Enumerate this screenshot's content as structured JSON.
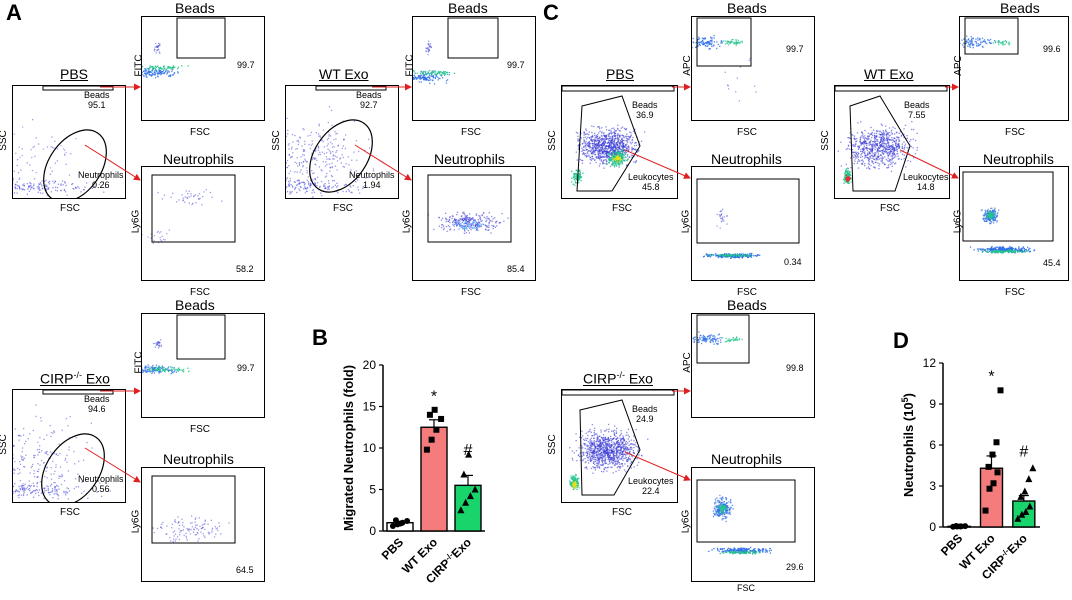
{
  "panels": {
    "A": "A",
    "B": "B",
    "C": "C",
    "D": "D"
  },
  "flow": {
    "beads": "Beads",
    "neutrophils": "Neutrophils",
    "fitc": "FITC",
    "apc": "APC",
    "fsc": "FSC",
    "ssc": "SSC",
    "ly6g": "Ly6G",
    "beads_word": "Beads",
    "neut_word": "Neutrophils",
    "leuk_word": "Leukocytes",
    "A": {
      "pbs": {
        "group": "PBS",
        "beads_gate": "95.1",
        "neut_gate": "0.26",
        "beads_pct": "99.7",
        "neut_pct": "58.2"
      },
      "wt": {
        "group": "WT Exo",
        "beads_gate": "92.7",
        "neut_gate": "1.94",
        "beads_pct": "99.7",
        "neut_pct": "85.4"
      },
      "cirp": {
        "group_main": "CIRP",
        "group_sup": "-/-",
        "group_tail": " Exo",
        "beads_gate": "94.6",
        "neut_gate": "0.56",
        "beads_pct": "99.7",
        "neut_pct": "64.5"
      }
    },
    "C": {
      "pbs": {
        "group": "PBS",
        "beads_gate": "36.9",
        "leuk_gate": "45.8",
        "beads_pct": "99.7",
        "neut_pct": "0.34"
      },
      "wt": {
        "group": "WT Exo",
        "beads_gate": "7.55",
        "leuk_gate": "14.8",
        "beads_pct": "99.6",
        "neut_pct": "45.4"
      },
      "cirp": {
        "group_main": "CIRP",
        "group_sup": "-/-",
        "group_tail": " Exo",
        "beads_gate": "24.9",
        "leuk_gate": "22.4",
        "beads_pct": "99.8",
        "neut_pct": "29.6"
      }
    }
  },
  "chart_data": [
    {
      "id": "B",
      "type": "bar",
      "ylabel": "Migrated Neutrophils (fold)",
      "ylim": [
        0,
        20
      ],
      "yticks": [
        "0",
        "5",
        "10",
        "15",
        "20"
      ],
      "categories": [
        "PBS",
        "WT Exo",
        "CIRP-/- Exo"
      ],
      "category_labels": [
        {
          "main": "PBS",
          "sup": "",
          "tail": ""
        },
        {
          "main": "WT Exo",
          "sup": "",
          "tail": ""
        },
        {
          "main": "CIRP",
          "sup": "-/-",
          "tail": "Exo"
        }
      ],
      "values": [
        1.0,
        12.5,
        5.5
      ],
      "errors": [
        0.15,
        0.9,
        1.2
      ],
      "colors": [
        "#ffffff",
        "#f47c7c",
        "#19d36b"
      ],
      "points": [
        [
          0.6,
          0.8,
          1.0,
          1.2,
          1.3,
          0.9
        ],
        [
          9.8,
          11.0,
          12.2,
          13.5,
          14.0,
          14.6
        ],
        [
          2.5,
          3.4,
          4.2,
          5.0,
          6.8,
          9.2
        ]
      ],
      "markers": [
        "circle",
        "square",
        "triangle"
      ],
      "annotations": [
        {
          "index": 1,
          "text": "*",
          "y": 16.3
        },
        {
          "index": 2,
          "text": "#",
          "y": 9.9
        }
      ]
    },
    {
      "id": "D",
      "type": "bar",
      "ylabel_main": "Neutrophils (10",
      "ylabel_sup": "5",
      "ylabel_tail": ")",
      "ylim": [
        0,
        12
      ],
      "yticks": [
        "0",
        "3",
        "6",
        "9",
        "12"
      ],
      "categories": [
        "PBS",
        "WT Exo",
        "CIRP-/- Exo"
      ],
      "category_labels": [
        {
          "main": "PBS",
          "sup": "",
          "tail": ""
        },
        {
          "main": "WT Exo",
          "sup": "",
          "tail": ""
        },
        {
          "main": "CIRP",
          "sup": "-/-",
          "tail": "Exo"
        }
      ],
      "values": [
        0.05,
        4.3,
        1.9
      ],
      "errors": [
        0.03,
        0.9,
        0.4
      ],
      "colors": [
        "#ffffff",
        "#f47c7c",
        "#19d36b"
      ],
      "points": [
        [
          0.02,
          0.04,
          0.05,
          0.06,
          0.07,
          0.05
        ],
        [
          1.2,
          2.8,
          3.2,
          4.0,
          4.4,
          5.3,
          6.2,
          10.0
        ],
        [
          0.6,
          0.9,
          1.1,
          1.5,
          2.2,
          2.6,
          3.5,
          4.3
        ]
      ],
      "markers": [
        "circle",
        "square",
        "triangle"
      ],
      "annotations": [
        {
          "index": 1,
          "text": "*",
          "y": 11.1
        },
        {
          "index": 2,
          "text": "#",
          "y": 5.6
        }
      ]
    }
  ]
}
